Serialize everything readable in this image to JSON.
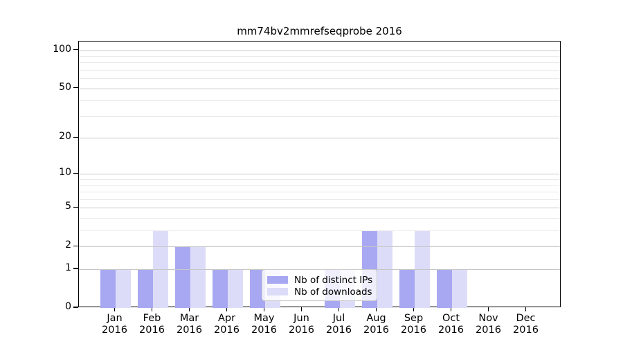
{
  "chart_data": {
    "type": "bar",
    "title": "mm74bv2mmrefseqprobe 2016",
    "categories": [
      "Jan",
      "Feb",
      "Mar",
      "Apr",
      "May",
      "Jun",
      "Jul",
      "Aug",
      "Sep",
      "Oct",
      "Nov",
      "Dec"
    ],
    "year_label": "2016",
    "series": [
      {
        "name": "Nb of distinct IPs",
        "color": "#a8a8f2",
        "values": [
          1,
          1,
          2,
          1,
          1,
          0,
          1,
          3,
          1,
          1,
          0,
          0
        ]
      },
      {
        "name": "Nb of downloads",
        "color": "#dcdcf9",
        "values": [
          1,
          3,
          2,
          1,
          1,
          0,
          1,
          3,
          3,
          1,
          0,
          0
        ]
      }
    ],
    "yscale": "log1p",
    "ylim": [
      0,
      117
    ],
    "y_major_ticks": [
      0,
      1,
      2,
      5,
      10,
      20,
      50,
      100
    ],
    "y_minor_ticks": [
      3,
      4,
      6,
      7,
      8,
      9,
      30,
      40,
      60,
      70,
      80,
      90
    ],
    "grid": "both",
    "legend_position": "lower center"
  }
}
